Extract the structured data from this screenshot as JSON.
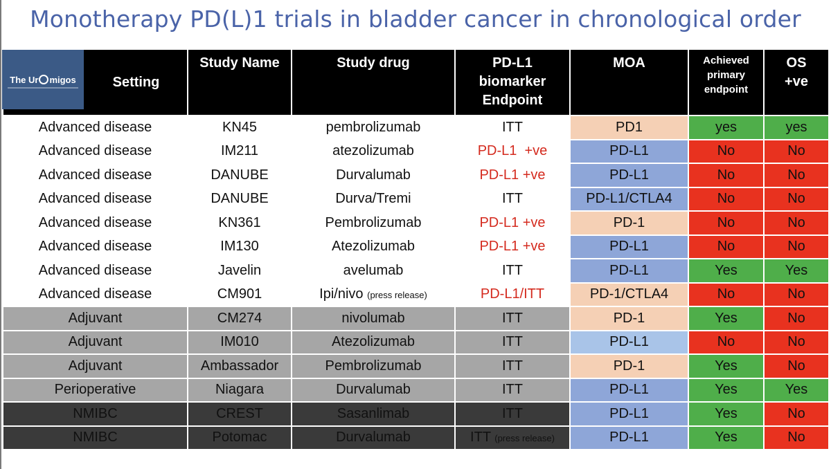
{
  "title": "Monotherapy PD(L)1 trials in bladder cancer in chronological order",
  "logo": {
    "text_prefix": "The Ur",
    "text_suffix": "migos"
  },
  "headers": {
    "setting": "Setting",
    "study_name": "Study Name",
    "study_drug": "Study drug",
    "pdl1": [
      "PD-L1",
      "biomarker",
      "Endpoint"
    ],
    "moa": "MOA",
    "achieved": [
      "Achieved",
      "primary",
      "endpoint"
    ],
    "os": [
      "OS",
      "+ve"
    ]
  },
  "colors": {
    "title": "#4a63a8",
    "header": "#000000",
    "adjuvant_row": "#a6a6a6",
    "nmibc_row": "#3a3a3a",
    "moa_pd1": "#f5d0b5",
    "moa_pdl1": "#8ea6d8",
    "yes": "#4fae4a",
    "no": "#e8321f",
    "pdl1_text": "#d42a1e"
  },
  "rows": [
    {
      "setting": "Advanced disease",
      "study": "KN45",
      "drug": "pembrolizumab",
      "drug_note": "",
      "endpoint": "ITT",
      "endpoint_note": "",
      "endpoint_red": false,
      "moa": "PD1",
      "achieved": "yes",
      "os": "yes"
    },
    {
      "setting": "Advanced disease",
      "study": "IM211",
      "drug": "atezolizumab",
      "drug_note": "",
      "endpoint": "PD-L1  +ve",
      "endpoint_note": "",
      "endpoint_red": true,
      "moa": "PD-L1",
      "achieved": "No",
      "os": "No"
    },
    {
      "setting": "Advanced disease",
      "study": "DANUBE",
      "drug": "Durvalumab",
      "drug_note": "",
      "endpoint": "PD-L1 +ve",
      "endpoint_note": "",
      "endpoint_red": true,
      "moa": "PD-L1",
      "achieved": "No",
      "os": "No"
    },
    {
      "setting": "Advanced disease",
      "study": "DANUBE",
      "drug": "Durva/Tremi",
      "drug_note": "",
      "endpoint": "ITT",
      "endpoint_note": "",
      "endpoint_red": false,
      "moa": "PD-L1/CTLA4",
      "achieved": "No",
      "os": "No"
    },
    {
      "setting": "Advanced disease",
      "study": "KN361",
      "drug": "Pembrolizumab",
      "drug_note": "",
      "endpoint": "PD-L1 +ve",
      "endpoint_note": "",
      "endpoint_red": true,
      "moa": "PD-1",
      "achieved": "No",
      "os": "No"
    },
    {
      "setting": "Advanced disease",
      "study": "IM130",
      "drug": "Atezolizumab",
      "drug_note": "",
      "endpoint": "PD-L1 +ve",
      "endpoint_note": "",
      "endpoint_red": true,
      "moa": "PD-L1",
      "achieved": "No",
      "os": "No"
    },
    {
      "setting": "Advanced disease",
      "study": "Javelin",
      "drug": "avelumab",
      "drug_note": "",
      "endpoint": "ITT",
      "endpoint_note": "",
      "endpoint_red": false,
      "moa": "PD-L1",
      "achieved": "Yes",
      "os": "Yes"
    },
    {
      "setting": "Advanced disease",
      "study": "CM901",
      "drug": "Ipi/nivo",
      "drug_note": "(press release)",
      "endpoint": "PD-L1/ITT",
      "endpoint_note": "",
      "endpoint_red": true,
      "moa": "PD-1/CTLA4",
      "achieved": "No",
      "os": "No"
    },
    {
      "setting": "Adjuvant",
      "study": "CM274",
      "drug": "nivolumab",
      "drug_note": "",
      "endpoint": "ITT",
      "endpoint_note": "",
      "endpoint_red": false,
      "moa": "PD-1",
      "achieved": "Yes",
      "os": "No"
    },
    {
      "setting": "Adjuvant",
      "study": "IM010",
      "drug": "Atezolizumab",
      "drug_note": "",
      "endpoint": "ITT",
      "endpoint_note": "",
      "endpoint_red": false,
      "moa": "PD-L1",
      "achieved": "No",
      "os": "No"
    },
    {
      "setting": "Adjuvant",
      "study": "Ambassador",
      "drug": "Pembrolizumab",
      "drug_note": "",
      "endpoint": "ITT",
      "endpoint_note": "",
      "endpoint_red": false,
      "moa": "PD-1",
      "achieved": "Yes",
      "os": "No"
    },
    {
      "setting": "Perioperative",
      "study": "Niagara",
      "drug": "Durvalumab",
      "drug_note": "",
      "endpoint": "ITT",
      "endpoint_note": "",
      "endpoint_red": false,
      "moa": "PD-L1",
      "achieved": "Yes",
      "os": "Yes"
    },
    {
      "setting": "NMIBC",
      "study": "CREST",
      "drug": "Sasanlimab",
      "drug_note": "",
      "endpoint": "ITT",
      "endpoint_note": "",
      "endpoint_red": false,
      "moa": "PD-L1",
      "achieved": "Yes",
      "os": "No"
    },
    {
      "setting": "NMIBC",
      "study": "Potomac",
      "drug": "Durvalumab",
      "drug_note": "",
      "endpoint": "ITT",
      "endpoint_note": "(press release)",
      "endpoint_red": false,
      "moa": "PD-L1",
      "achieved": "Yes",
      "os": "No"
    }
  ]
}
